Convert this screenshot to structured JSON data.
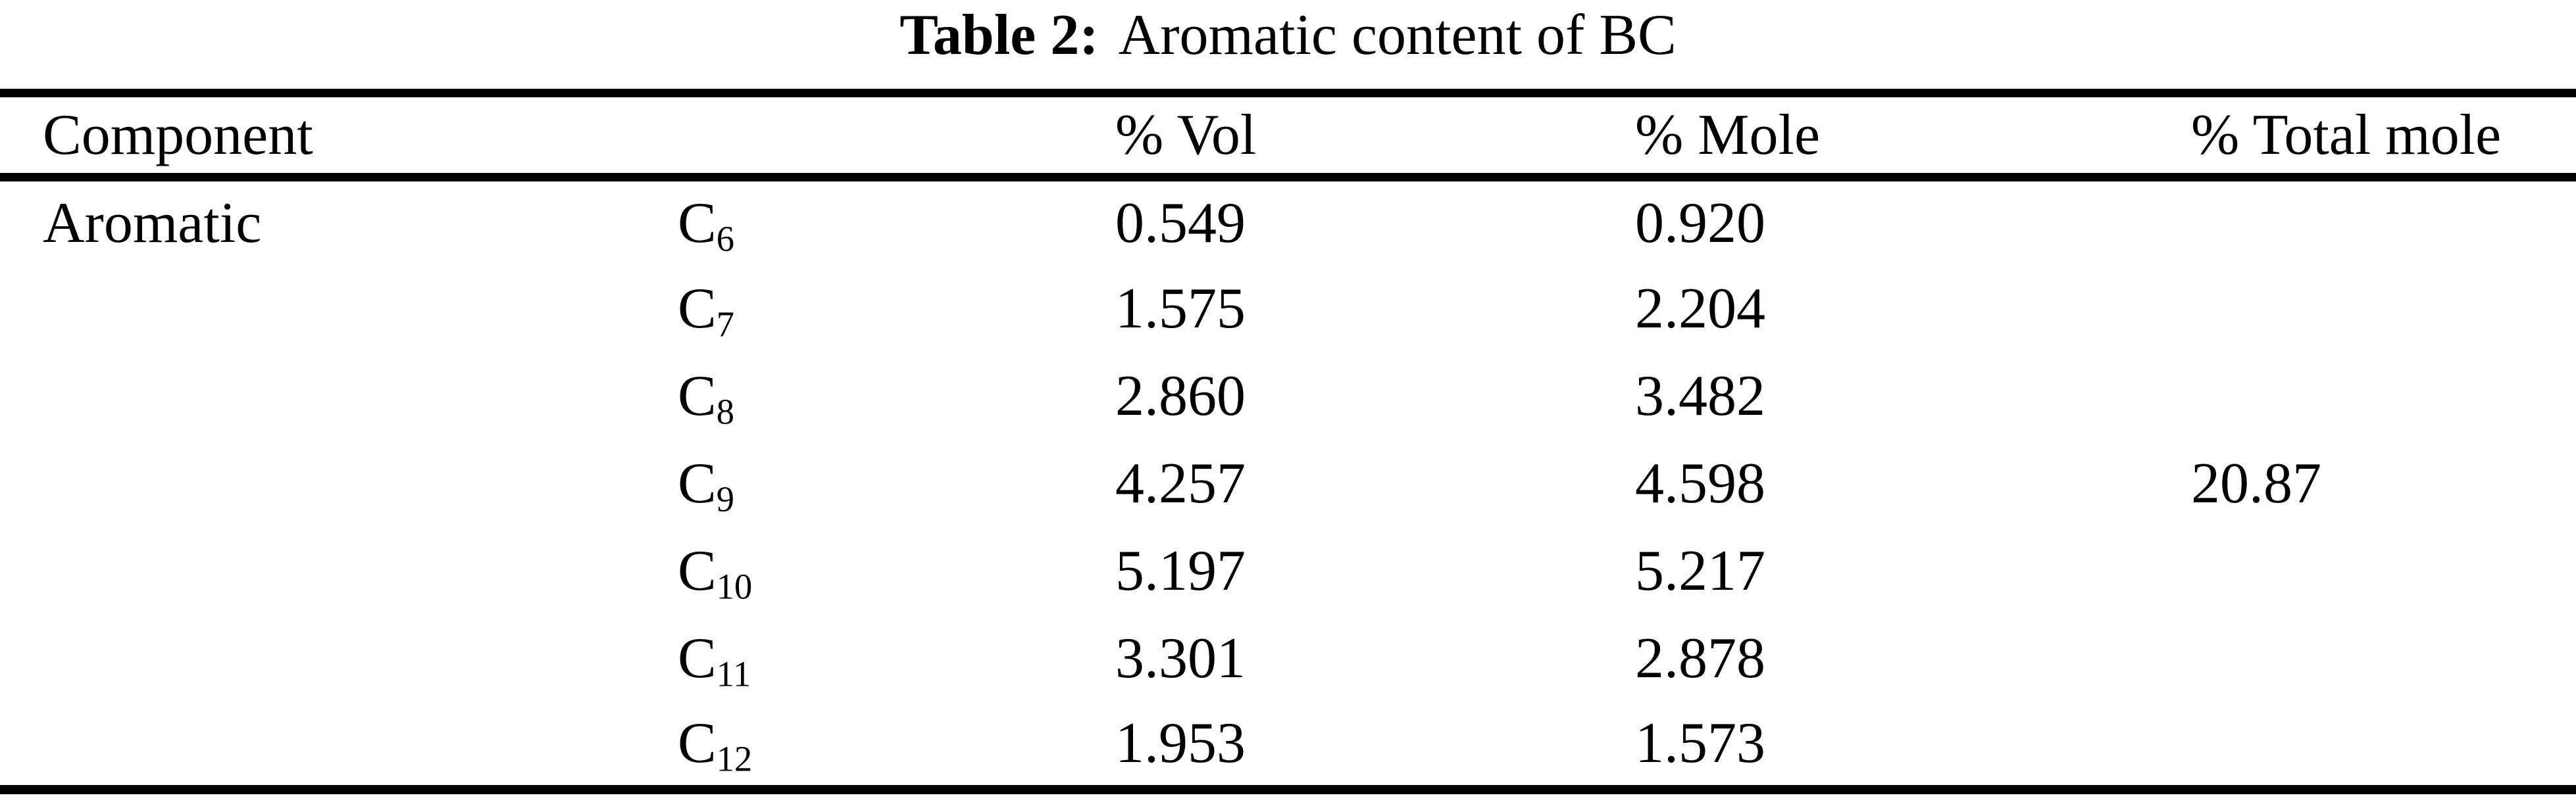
{
  "caption": {
    "label": "Table 2:",
    "text": "Aromatic content of BC"
  },
  "headers": {
    "component": "Component",
    "vol": "% Vol",
    "mole": "% Mole",
    "total_mole": "% Total mole"
  },
  "group_label": "Aromatic",
  "rows": [
    {
      "base": "C",
      "sub": "6",
      "vol": "0.549",
      "mole": "0.920",
      "total": ""
    },
    {
      "base": "C",
      "sub": "7",
      "vol": "1.575",
      "mole": "2.204",
      "total": ""
    },
    {
      "base": "C",
      "sub": "8",
      "vol": "2.860",
      "mole": "3.482",
      "total": ""
    },
    {
      "base": "C",
      "sub": "9",
      "vol": "4.257",
      "mole": "4.598",
      "total": "20.87"
    },
    {
      "base": "C",
      "sub": "10",
      "vol": "5.197",
      "mole": "5.217",
      "total": ""
    },
    {
      "base": "C",
      "sub": "11",
      "vol": "3.301",
      "mole": "2.878",
      "total": ""
    },
    {
      "base": "C",
      "sub": "12",
      "vol": "1.953",
      "mole": "1.573",
      "total": ""
    }
  ],
  "chart_data": {
    "type": "table",
    "title": "Table 2: Aromatic content of BC",
    "columns": [
      "Component",
      "Species",
      "% Vol",
      "% Mole",
      "% Total mole"
    ],
    "group": "Aromatic",
    "species": [
      "C6",
      "C7",
      "C8",
      "C9",
      "C10",
      "C11",
      "C12"
    ],
    "vol_percent": [
      0.549,
      1.575,
      2.86,
      4.257,
      5.197,
      3.301,
      1.953
    ],
    "mole_percent": [
      0.92,
      2.204,
      3.482,
      4.598,
      5.217,
      2.878,
      1.573
    ],
    "total_mole_percent": 20.87,
    "total_mole_shown_on_row": "C9"
  }
}
